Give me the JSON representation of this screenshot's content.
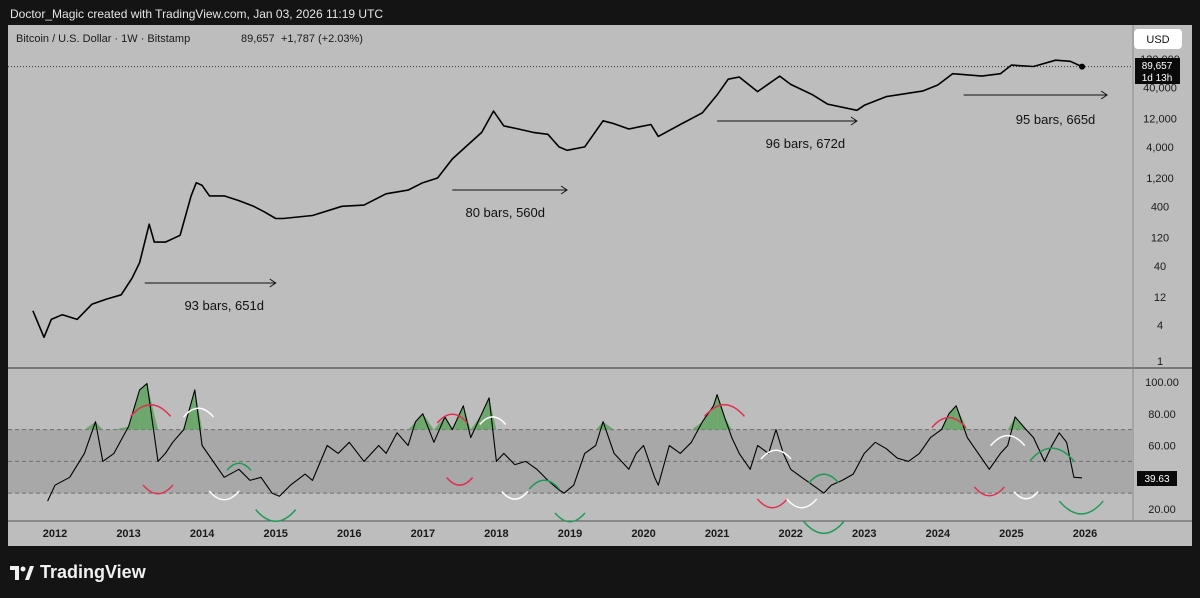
{
  "header": {
    "text": "Doctor_Magic created with TradingView.com, Jan 03, 2026 11:19 UTC"
  },
  "footer": {
    "brand": "TradingView"
  },
  "currency_button": {
    "label": "USD"
  },
  "price_badge": {
    "price": "89,657",
    "countdown": "1d 13h"
  },
  "rsi_badge": {
    "value": "39.63"
  },
  "colors": {
    "background": "#bdbdbd",
    "frame": "#141414",
    "line": "#000000",
    "rsi_band": "#a8a8a8",
    "overbought_fill": "#5fa35f",
    "peak_arc": "#e03050",
    "top_arc": "#ffffff",
    "bottom_arc": "#1e9a55"
  },
  "chart_data": [
    {
      "type": "line",
      "title": "Bitcoin / U.S. Dollar · 1W · Bitstamp",
      "last_price": "89,657",
      "change": "+1,787 (+2.03%)",
      "y_scale": "log",
      "ylim": [
        1,
        130000
      ],
      "y_ticks": [
        1,
        4,
        12,
        40,
        120,
        400,
        1200,
        4000,
        12000,
        40000,
        120000
      ],
      "y_tick_labels": [
        "1",
        "4",
        "12",
        "40",
        "120",
        "400",
        "1,200",
        "4,000",
        "12,000",
        "40,000",
        "120,000"
      ],
      "x_ticks": [
        "2012",
        "2013",
        "2014",
        "2015",
        "2016",
        "2017",
        "2018",
        "2019",
        "2020",
        "2021",
        "2022",
        "2023",
        "2024",
        "2025",
        "2026"
      ],
      "series": [
        {
          "x": [
            2011.7,
            2011.85,
            2011.95,
            2012.1,
            2012.3,
            2012.5,
            2012.7,
            2012.9,
            2013.05,
            2013.15,
            2013.28,
            2013.35,
            2013.5,
            2013.7,
            2013.85,
            2013.92,
            2014.0,
            2014.1,
            2014.3,
            2014.5,
            2014.7,
            2014.85,
            2015.0,
            2015.1,
            2015.5,
            2015.9,
            2016.2,
            2016.5,
            2016.8,
            2017.0,
            2017.2,
            2017.4,
            2017.6,
            2017.8,
            2017.96,
            2018.1,
            2018.3,
            2018.5,
            2018.7,
            2018.85,
            2018.96,
            2019.2,
            2019.45,
            2019.6,
            2019.8,
            2020.1,
            2020.2,
            2020.5,
            2020.8,
            2021.0,
            2021.15,
            2021.3,
            2021.55,
            2021.85,
            2022.0,
            2022.3,
            2022.5,
            2022.9,
            2023.0,
            2023.3,
            2023.8,
            2024.0,
            2024.2,
            2024.6,
            2024.85,
            2025.0,
            2025.3,
            2025.6,
            2025.8,
            2025.96
          ],
          "y": [
            7,
            2.5,
            5,
            6,
            5,
            9,
            11,
            13,
            25,
            45,
            200,
            100,
            100,
            130,
            600,
            1000,
            900,
            600,
            600,
            500,
            400,
            320,
            250,
            250,
            280,
            400,
            420,
            650,
            750,
            1000,
            1200,
            2500,
            4200,
            7000,
            16000,
            9000,
            8000,
            7000,
            6500,
            4000,
            3500,
            4000,
            11000,
            9800,
            8000,
            9500,
            6000,
            9500,
            15000,
            30000,
            55000,
            60000,
            34000,
            62000,
            45000,
            30000,
            21000,
            16500,
            20000,
            28000,
            35000,
            44000,
            68000,
            62000,
            68000,
            95000,
            90000,
            115000,
            110000,
            89657
          ]
        }
      ],
      "annotations": [
        "93 bars, 651d",
        "80 bars, 560d",
        "96 bars, 672d",
        "95 bars, 665d"
      ]
    },
    {
      "type": "line",
      "title": "",
      "ylim": [
        15,
        105
      ],
      "y_ticks": [
        20,
        40,
        60,
        80,
        100
      ],
      "y_tick_labels": [
        "20.00",
        "40.00",
        "60.00",
        "80.00",
        "100.00"
      ],
      "band": [
        30,
        70
      ],
      "midline": 50,
      "last_value": "39.63",
      "series": [
        {
          "x": [
            2011.9,
            2012.0,
            2012.2,
            2012.4,
            2012.55,
            2012.65,
            2012.8,
            2013.0,
            2013.15,
            2013.25,
            2013.4,
            2013.5,
            2013.6,
            2013.75,
            2013.9,
            2014.0,
            2014.15,
            2014.3,
            2014.5,
            2014.65,
            2014.8,
            2014.95,
            2015.05,
            2015.2,
            2015.4,
            2015.5,
            2015.7,
            2015.85,
            2016.0,
            2016.2,
            2016.4,
            2016.5,
            2016.65,
            2016.8,
            2016.9,
            2017.0,
            2017.15,
            2017.3,
            2017.4,
            2017.55,
            2017.65,
            2017.8,
            2017.9,
            2018.0,
            2018.1,
            2018.25,
            2018.4,
            2018.55,
            2018.7,
            2018.85,
            2018.92,
            2019.05,
            2019.2,
            2019.35,
            2019.45,
            2019.6,
            2019.8,
            2019.9,
            2020.0,
            2020.15,
            2020.2,
            2020.35,
            2020.5,
            2020.65,
            2020.8,
            2020.95,
            2021.0,
            2021.1,
            2021.2,
            2021.3,
            2021.45,
            2021.55,
            2021.7,
            2021.8,
            2021.9,
            2022.0,
            2022.15,
            2022.3,
            2022.45,
            2022.55,
            2022.7,
            2022.85,
            2023.0,
            2023.15,
            2023.3,
            2023.45,
            2023.6,
            2023.75,
            2023.9,
            2024.05,
            2024.15,
            2024.25,
            2024.4,
            2024.55,
            2024.7,
            2024.85,
            2024.95,
            2025.05,
            2025.2,
            2025.3,
            2025.45,
            2025.55,
            2025.65,
            2025.75,
            2025.85,
            2025.96
          ],
          "y": [
            25,
            35,
            40,
            55,
            75,
            50,
            55,
            72,
            95,
            99,
            50,
            55,
            62,
            70,
            95,
            60,
            50,
            40,
            45,
            38,
            40,
            30,
            28,
            35,
            42,
            38,
            60,
            55,
            62,
            50,
            60,
            55,
            68,
            60,
            75,
            80,
            62,
            78,
            70,
            85,
            65,
            80,
            90,
            50,
            55,
            48,
            50,
            45,
            38,
            32,
            30,
            35,
            55,
            60,
            75,
            55,
            45,
            55,
            60,
            40,
            35,
            60,
            55,
            62,
            75,
            85,
            92,
            78,
            65,
            55,
            45,
            60,
            55,
            70,
            55,
            45,
            40,
            35,
            30,
            35,
            38,
            42,
            55,
            62,
            58,
            52,
            50,
            55,
            65,
            70,
            80,
            85,
            65,
            55,
            45,
            55,
            60,
            78,
            70,
            65,
            50,
            60,
            68,
            62,
            40,
            39.63
          ]
        }
      ]
    }
  ]
}
